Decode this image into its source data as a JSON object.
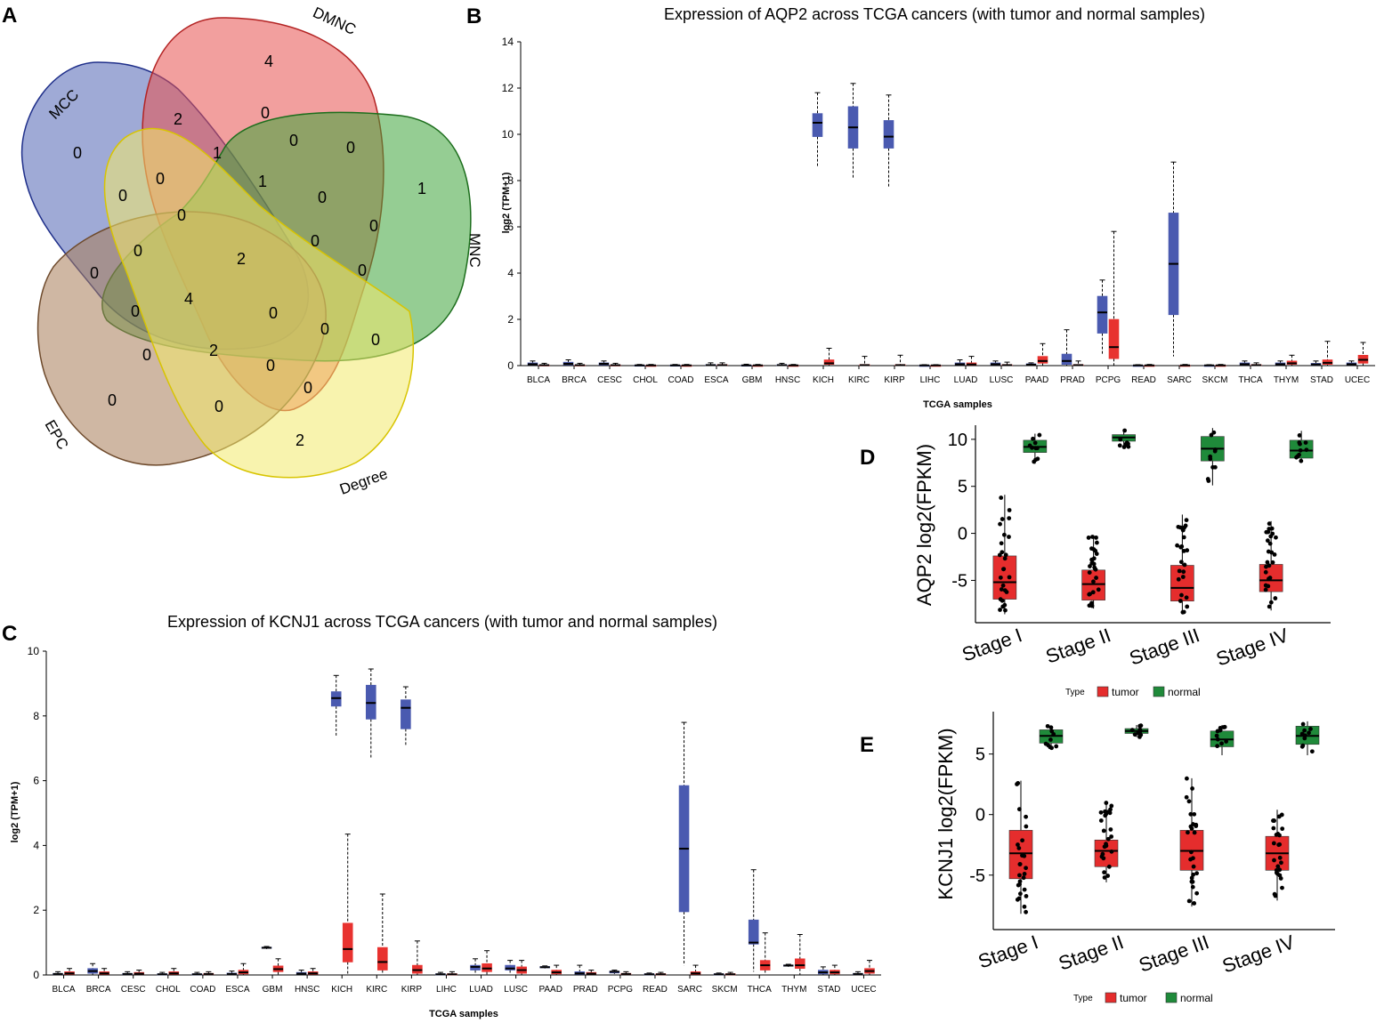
{
  "panels": {
    "a": {
      "letter": "A",
      "set_labels": [
        "MCC",
        "DMNC",
        "MNC",
        "EPC",
        "Degree"
      ],
      "region_counts": [
        "0",
        "2",
        "4",
        "0",
        "1",
        "0",
        "0",
        "1",
        "0",
        "1",
        "0",
        "0",
        "0",
        "0",
        "0",
        "0",
        "2",
        "0",
        "0",
        "0",
        "0",
        "4",
        "0",
        "0",
        "0",
        "0",
        "0",
        "0",
        "2",
        "0",
        "0",
        "0",
        "0",
        "2"
      ]
    },
    "b": {
      "letter": "B"
    },
    "c": {
      "letter": "C"
    },
    "d": {
      "letter": "D"
    },
    "e": {
      "letter": "E"
    }
  },
  "colors": {
    "tumor_b": "#e8322f",
    "normal_b": "#4a5ab0",
    "tumor_stage": "#e52d2d",
    "normal_stage": "#1f8a3a",
    "venn_mcc": "#5064b4",
    "venn_dmnc": "#e8504f",
    "venn_mnc": "#3ea43a",
    "venn_epc": "#a77c57",
    "venn_degree": "#f2ea6c"
  },
  "chart_data": [
    {
      "id": "B",
      "type": "box",
      "title": "Expression of AQP2 across TCGA cancers (with tumor and normal samples)",
      "xlabel": "TCGA samples",
      "ylabel": "log2 (TPM+1)",
      "ylim": [
        0,
        14
      ],
      "yticks": [
        0,
        2,
        4,
        6,
        8,
        10,
        12,
        14
      ],
      "categories": [
        "BLCA",
        "BRCA",
        "CESC",
        "CHOL",
        "COAD",
        "ESCA",
        "GBM",
        "HNSC",
        "KICH",
        "KIRC",
        "KIRP",
        "LIHC",
        "LUAD",
        "LUSC",
        "PAAD",
        "PRAD",
        "PCPG",
        "READ",
        "SARC",
        "SKCM",
        "THCA",
        "THYM",
        "STAD",
        "UCEC"
      ],
      "tumor": [
        [
          0,
          0,
          0.02,
          0.04,
          0.1
        ],
        [
          0,
          0,
          0.02,
          0.04,
          0.1
        ],
        [
          0,
          0,
          0.02,
          0.04,
          0.1
        ],
        [
          0,
          0,
          0.01,
          0.02,
          0.05
        ],
        [
          0,
          0,
          0.01,
          0.02,
          0.05
        ],
        [
          0,
          0,
          0.02,
          0.05,
          0.12
        ],
        [
          0,
          0,
          0.01,
          0.02,
          0.05
        ],
        [
          0,
          0,
          0.01,
          0.02,
          0.05
        ],
        [
          0,
          0.05,
          0.1,
          0.25,
          0.75
        ],
        [
          0,
          0,
          0.02,
          0.05,
          0.4
        ],
        [
          0,
          0,
          0.02,
          0.05,
          0.45
        ],
        [
          0,
          0,
          0.01,
          0.02,
          0.04
        ],
        [
          0,
          0.02,
          0.05,
          0.12,
          0.4
        ],
        [
          0,
          0,
          0.02,
          0.05,
          0.15
        ],
        [
          0,
          0.1,
          0.2,
          0.4,
          0.95
        ],
        [
          0,
          0,
          0.02,
          0.05,
          0.2
        ],
        [
          0,
          0.3,
          0.8,
          2.0,
          5.8
        ],
        [
          0,
          0,
          0.01,
          0.02,
          0.05
        ],
        [
          0,
          0,
          0.01,
          0.02,
          0.05
        ],
        [
          0,
          0,
          0.01,
          0.02,
          0.05
        ],
        [
          0,
          0,
          0.02,
          0.05,
          0.12
        ],
        [
          0,
          0.05,
          0.1,
          0.2,
          0.45
        ],
        [
          0,
          0.05,
          0.12,
          0.25,
          1.05
        ],
        [
          0,
          0.1,
          0.25,
          0.45,
          1.0
        ]
      ],
      "normal": [
        [
          0,
          0.03,
          0.06,
          0.12,
          0.2
        ],
        [
          0,
          0.03,
          0.08,
          0.15,
          0.25
        ],
        [
          0,
          0.03,
          0.08,
          0.12,
          0.2
        ],
        [
          0,
          0,
          0.01,
          0.03,
          0.05
        ],
        [
          0,
          0,
          0.01,
          0.03,
          0.05
        ],
        [
          0,
          0,
          0.02,
          0.05,
          0.12
        ],
        [
          0,
          0,
          0.01,
          0.03,
          0.06
        ],
        [
          0,
          0,
          0.02,
          0.05,
          0.1
        ],
        [
          8.6,
          9.9,
          10.5,
          10.9,
          11.8
        ],
        [
          8.1,
          9.4,
          10.3,
          11.2,
          12.2
        ],
        [
          7.7,
          9.4,
          9.9,
          10.6,
          11.7
        ],
        [
          0,
          0,
          0.01,
          0.02,
          0.04
        ],
        [
          0,
          0.03,
          0.06,
          0.12,
          0.25
        ],
        [
          0,
          0.03,
          0.06,
          0.12,
          0.2
        ],
        [
          0,
          0.02,
          0.04,
          0.08,
          0.12
        ],
        [
          0,
          0.05,
          0.2,
          0.5,
          1.55
        ],
        [
          0.5,
          1.4,
          2.3,
          3.0,
          3.7
        ],
        [
          0,
          0,
          0.01,
          0.02,
          0.04
        ],
        [
          0.4,
          2.2,
          4.4,
          6.6,
          8.8
        ],
        [
          0,
          0,
          0.01,
          0.02,
          0.04
        ],
        [
          0,
          0.03,
          0.06,
          0.12,
          0.2
        ],
        [
          0,
          0.03,
          0.06,
          0.12,
          0.2
        ],
        [
          0,
          0.02,
          0.05,
          0.1,
          0.2
        ],
        [
          0,
          0.03,
          0.06,
          0.12,
          0.2
        ]
      ]
    },
    {
      "id": "C",
      "type": "box",
      "title": "Expression of KCNJ1 across TCGA cancers (with tumor and normal samples)",
      "xlabel": "TCGA samples",
      "ylabel": "log2 (TPM+1)",
      "ylim": [
        0,
        10
      ],
      "yticks": [
        0,
        2,
        4,
        6,
        8,
        10
      ],
      "categories": [
        "BLCA",
        "BRCA",
        "CESC",
        "CHOL",
        "COAD",
        "ESCA",
        "GBM",
        "HNSC",
        "KICH",
        "KIRC",
        "KIRP",
        "LIHC",
        "LUAD",
        "LUSC",
        "PAAD",
        "PRAD",
        "PCPG",
        "READ",
        "SARC",
        "SKCM",
        "THCA",
        "THYM",
        "STAD",
        "UCEC"
      ],
      "tumor": [
        [
          0,
          0.02,
          0.05,
          0.1,
          0.2
        ],
        [
          0,
          0.02,
          0.05,
          0.1,
          0.2
        ],
        [
          0,
          0.02,
          0.04,
          0.08,
          0.15
        ],
        [
          0,
          0.02,
          0.05,
          0.1,
          0.2
        ],
        [
          0,
          0.01,
          0.03,
          0.05,
          0.1
        ],
        [
          0,
          0.03,
          0.08,
          0.15,
          0.35
        ],
        [
          0,
          0.1,
          0.18,
          0.28,
          0.5
        ],
        [
          0,
          0.02,
          0.05,
          0.1,
          0.2
        ],
        [
          0,
          0.4,
          0.8,
          1.6,
          4.35
        ],
        [
          0,
          0.15,
          0.4,
          0.85,
          2.5
        ],
        [
          0,
          0.05,
          0.15,
          0.3,
          1.05
        ],
        [
          0,
          0.01,
          0.02,
          0.04,
          0.1
        ],
        [
          0,
          0.1,
          0.2,
          0.35,
          0.75
        ],
        [
          0,
          0.05,
          0.15,
          0.25,
          0.45
        ],
        [
          0,
          0.03,
          0.08,
          0.15,
          0.3
        ],
        [
          0,
          0.02,
          0.04,
          0.08,
          0.15
        ],
        [
          0,
          0.01,
          0.03,
          0.05,
          0.1
        ],
        [
          0,
          0.01,
          0.02,
          0.04,
          0.08
        ],
        [
          0,
          0.02,
          0.05,
          0.1,
          0.3
        ],
        [
          0,
          0.01,
          0.02,
          0.04,
          0.08
        ],
        [
          0,
          0.15,
          0.3,
          0.45,
          1.3
        ],
        [
          0,
          0.2,
          0.3,
          0.5,
          1.25
        ],
        [
          0,
          0.03,
          0.08,
          0.15,
          0.3
        ],
        [
          0,
          0.05,
          0.12,
          0.2,
          0.45
        ]
      ],
      "normal": [
        [
          0,
          0.01,
          0.03,
          0.05,
          0.1
        ],
        [
          0,
          0.05,
          0.12,
          0.2,
          0.35
        ],
        [
          0,
          0.01,
          0.03,
          0.05,
          0.1
        ],
        [
          0,
          0.01,
          0.02,
          0.04,
          0.08
        ],
        [
          0,
          0.01,
          0.02,
          0.04,
          0.08
        ],
        [
          0,
          0.01,
          0.03,
          0.06,
          0.12
        ],
        [
          0.8,
          0.82,
          0.84,
          0.86,
          0.88
        ],
        [
          0,
          0.02,
          0.04,
          0.08,
          0.15
        ],
        [
          7.35,
          8.3,
          8.55,
          8.75,
          9.25
        ],
        [
          6.7,
          7.9,
          8.4,
          8.95,
          9.45
        ],
        [
          7.1,
          7.6,
          8.25,
          8.5,
          8.9
        ],
        [
          0,
          0.01,
          0.02,
          0.04,
          0.08
        ],
        [
          0.05,
          0.15,
          0.25,
          0.3,
          0.5
        ],
        [
          0.05,
          0.15,
          0.2,
          0.3,
          0.45
        ],
        [
          0.2,
          0.22,
          0.24,
          0.26,
          0.28
        ],
        [
          0,
          0.02,
          0.05,
          0.1,
          0.3
        ],
        [
          0.03,
          0.06,
          0.1,
          0.12,
          0.15
        ],
        [
          0,
          0.01,
          0.02,
          0.04,
          0.06
        ],
        [
          0.3,
          1.95,
          3.9,
          5.85,
          7.8
        ],
        [
          0,
          0.01,
          0.02,
          0.04,
          0.06
        ],
        [
          0.1,
          0.95,
          1.0,
          1.7,
          3.25
        ],
        [
          0.25,
          0.27,
          0.29,
          0.31,
          0.33
        ],
        [
          0,
          0.03,
          0.08,
          0.15,
          0.25
        ],
        [
          0,
          0.01,
          0.03,
          0.05,
          0.1
        ]
      ]
    },
    {
      "id": "D",
      "type": "box",
      "title": "",
      "ylabel": "AQP2  log2(FPKM)",
      "ylim": [
        -9.5,
        11.5
      ],
      "yticks": [
        -5,
        0,
        5,
        10
      ],
      "categories": [
        "Stage I",
        "Stage II",
        "Stage III",
        "Stage IV"
      ],
      "tumor": [
        [
          -8.6,
          -7.0,
          -5.2,
          -2.4,
          4.1
        ],
        [
          -8.0,
          -7.1,
          -5.4,
          -3.9,
          -0.3
        ],
        [
          -8.6,
          -7.2,
          -5.8,
          -3.4,
          2.0
        ],
        [
          -8.2,
          -6.2,
          -5.0,
          -3.3,
          1.3
        ]
      ],
      "normal": [
        [
          7.4,
          8.6,
          9.2,
          9.9,
          10.6
        ],
        [
          9.0,
          9.8,
          10.2,
          10.5,
          11.0
        ],
        [
          5.1,
          7.7,
          9.0,
          10.3,
          11.2
        ],
        [
          7.5,
          8.0,
          8.8,
          9.9,
          10.9
        ]
      ],
      "legend_title": "Type",
      "legend": [
        "tumor",
        "normal"
      ]
    },
    {
      "id": "E",
      "type": "box",
      "title": "",
      "ylabel": "KCNJ1  log2(FPKM)",
      "ylim": [
        -9.5,
        8.5
      ],
      "yticks": [
        -5,
        0,
        5
      ],
      "categories": [
        "Stage I",
        "Stage II",
        "Stage III",
        "Stage IV"
      ],
      "tumor": [
        [
          -8.2,
          -5.3,
          -3.2,
          -1.3,
          2.8
        ],
        [
          -5.6,
          -4.3,
          -3.0,
          -2.1,
          1.0
        ],
        [
          -7.6,
          -4.6,
          -3.0,
          -1.3,
          3.0
        ],
        [
          -7.1,
          -4.6,
          -3.2,
          -1.8,
          0.4
        ]
      ],
      "normal": [
        [
          5.5,
          5.9,
          6.5,
          7.0,
          7.3
        ],
        [
          6.4,
          6.7,
          6.9,
          7.1,
          7.4
        ],
        [
          4.9,
          5.6,
          6.2,
          6.9,
          7.4
        ],
        [
          4.9,
          5.8,
          6.5,
          7.3,
          7.7
        ]
      ],
      "legend_title": "Type",
      "legend": [
        "tumor",
        "normal"
      ]
    }
  ]
}
